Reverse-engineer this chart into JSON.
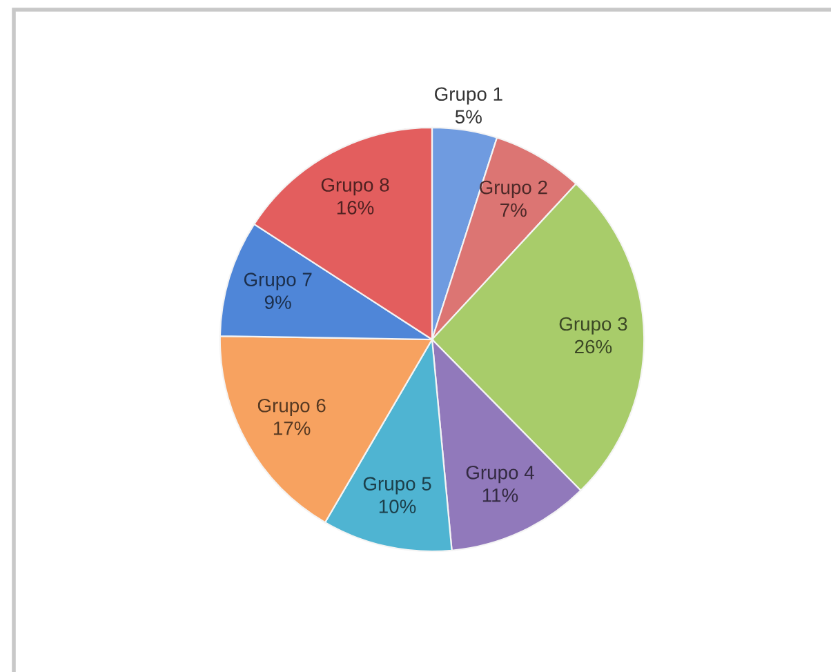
{
  "chart_data": {
    "type": "pie",
    "categories": [
      "Grupo 1",
      "Grupo 2",
      "Grupo 3",
      "Grupo 4",
      "Grupo 5",
      "Grupo 6",
      "Grupo 7",
      "Grupo 8"
    ],
    "values": [
      5,
      7,
      26,
      11,
      10,
      17,
      9,
      16
    ],
    "value_labels": [
      "5%",
      "7%",
      "26%",
      "11%",
      "10%",
      "17%",
      "9%",
      "16%"
    ],
    "colors": [
      "#6f9be0",
      "#dc7573",
      "#a8cc6a",
      "#9179bb",
      "#4fb4d2",
      "#f7a260",
      "#4f86d8",
      "#e35e5e"
    ]
  }
}
